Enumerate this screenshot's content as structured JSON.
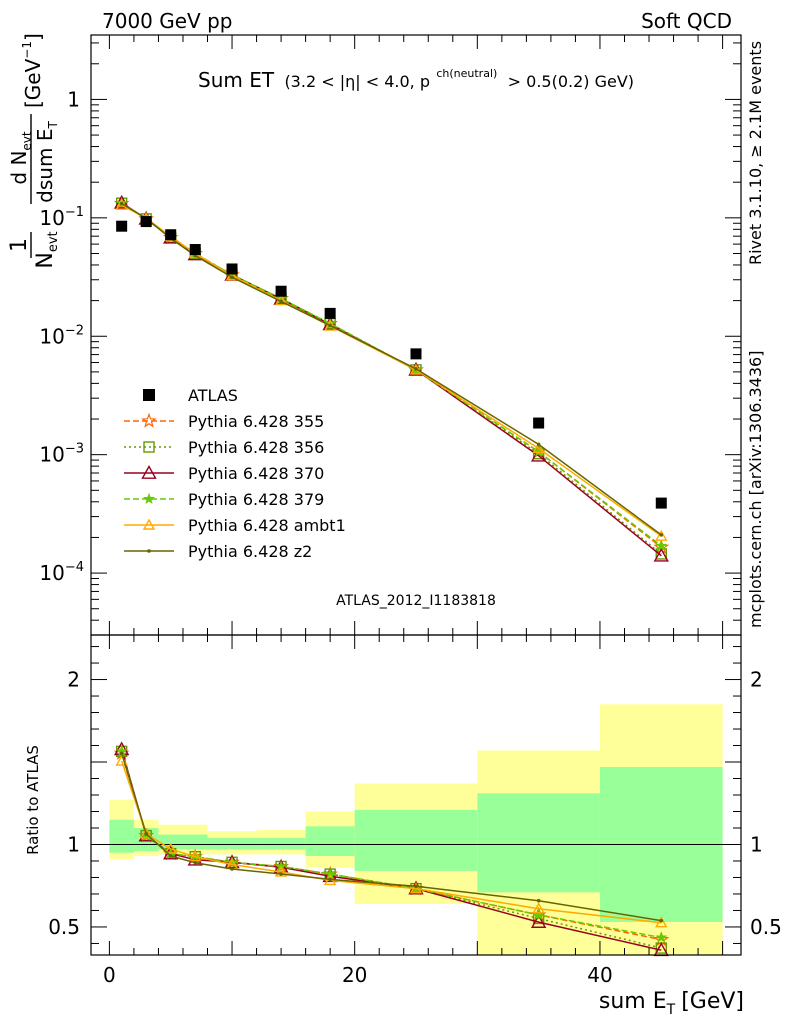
{
  "header": {
    "left": "7000 GeV pp",
    "right": "Soft QCD"
  },
  "side_labels": {
    "rivet": "Rivet 3.1.10, ≥ 2.1M events",
    "mcplots": "mcplots.cern.ch [arXiv:1306.3436]"
  },
  "watermark": "ATLAS_2012_I1183818",
  "colors": {
    "data": "#000000",
    "p355": "#ff6600",
    "p356": "#669900",
    "p370": "#990022",
    "p379": "#66cc00",
    "ambt1": "#ffaa00",
    "z2": "#666600",
    "band_inner": "#99ff99",
    "band_outer": "#ffff99",
    "watermark": "#aaaaaa",
    "side_text": "#888888"
  },
  "chart_data": {
    "type": "line",
    "title_main": "Sum ET",
    "title_sub": "(3.2 < |η| < 4.0, p",
    "title_sup": "ch(neutral)",
    "title_tail": "> 0.5(0.2) GeV)",
    "xlabel": "sum E",
    "xlabel_sub": "T",
    "xlabel_unit": "[GeV]",
    "xlim": [
      -1.5,
      51.5
    ],
    "x_ticks": [
      0,
      20,
      40
    ],
    "main": {
      "yscale": "log",
      "ylim": [
        3e-05,
        3.5
      ],
      "ytick_labels": [
        {
          "value": 1,
          "base": "1",
          "exp": ""
        },
        {
          "value": 0.1,
          "base": "10",
          "exp": "−1"
        },
        {
          "value": 0.01,
          "base": "10",
          "exp": "−2"
        },
        {
          "value": 0.001,
          "base": "10",
          "exp": "−3"
        },
        {
          "value": 0.0001,
          "base": "10",
          "exp": "−4"
        }
      ],
      "ylabel_num": "d N",
      "ylabel_num_sub": "evt",
      "ylabel_den": "dsum E",
      "ylabel_den_sub": "T",
      "ylabel_pre": "1",
      "ylabel_pre_den": "N",
      "ylabel_pre_den_sub": "evt",
      "ylabel_unit": "[GeV",
      "ylabel_unit_sup": "−1",
      "ylabel_unit_close": "]"
    },
    "ratio": {
      "ylabel": "Ratio to ATLAS",
      "ylim": [
        0.33,
        2.27
      ],
      "ytick_labels": [
        "0.5",
        "1",
        "2"
      ],
      "yticks": [
        0.5,
        1,
        2
      ],
      "bands": [
        {
          "x0": 0,
          "x1": 2,
          "inner": [
            0.95,
            1.15
          ],
          "outer": [
            0.91,
            1.27
          ]
        },
        {
          "x0": 2,
          "x1": 4,
          "inner": [
            0.96,
            1.1
          ],
          "outer": [
            0.93,
            1.15
          ]
        },
        {
          "x0": 4,
          "x1": 8,
          "inner": [
            0.97,
            1.06
          ],
          "outer": [
            0.94,
            1.12
          ]
        },
        {
          "x0": 8,
          "x1": 12,
          "inner": [
            0.97,
            1.04
          ],
          "outer": [
            0.94,
            1.08
          ]
        },
        {
          "x0": 12,
          "x1": 16,
          "inner": [
            0.97,
            1.04
          ],
          "outer": [
            0.94,
            1.09
          ]
        },
        {
          "x0": 16,
          "x1": 20,
          "inner": [
            0.93,
            1.11
          ],
          "outer": [
            0.86,
            1.2
          ]
        },
        {
          "x0": 20,
          "x1": 30,
          "inner": [
            0.84,
            1.21
          ],
          "outer": [
            0.64,
            1.37
          ]
        },
        {
          "x0": 30,
          "x1": 40,
          "inner": [
            0.71,
            1.31
          ],
          "outer": [
            0.33,
            1.57
          ]
        },
        {
          "x0": 40,
          "x1": 50,
          "inner": [
            0.53,
            1.47
          ],
          "outer": [
            0.33,
            1.85
          ]
        }
      ]
    },
    "x": [
      1,
      3,
      5,
      7,
      10,
      14,
      18,
      25,
      35,
      45
    ],
    "data": {
      "name": "ATLAS",
      "y": [
        0.085,
        0.093,
        0.072,
        0.054,
        0.037,
        0.024,
        0.0156,
        0.0071,
        0.00185,
        0.00039
      ]
    },
    "series": [
      {
        "name": "Pythia 6.428 355",
        "key": "p355",
        "marker": "star",
        "dash": "6,3",
        "y": [
          0.132,
          0.098,
          0.068,
          0.05,
          0.033,
          0.0208,
          0.0128,
          0.0052,
          0.00106,
          0.000165
        ]
      },
      {
        "name": "Pythia 6.428 356",
        "key": "p356",
        "marker": "square",
        "dash": "2,3",
        "y": [
          0.133,
          0.098,
          0.068,
          0.05,
          0.033,
          0.0208,
          0.0128,
          0.0052,
          0.00102,
          0.000145
        ]
      },
      {
        "name": "Pythia 6.428 370",
        "key": "p370",
        "marker": "triangle",
        "dash": "",
        "y": [
          0.134,
          0.098,
          0.068,
          0.049,
          0.033,
          0.0207,
          0.0126,
          0.0052,
          0.00098,
          0.00014
        ]
      },
      {
        "name": "Pythia 6.428 379",
        "key": "p379",
        "marker": "smallstar",
        "dash": "6,3",
        "y": [
          0.133,
          0.098,
          0.068,
          0.05,
          0.033,
          0.0208,
          0.0128,
          0.0052,
          0.00106,
          0.00017
        ]
      },
      {
        "name": "Pythia 6.428 ambt1",
        "key": "ambt1",
        "marker": "smalltriangle",
        "dash": "",
        "y": [
          0.128,
          0.099,
          0.07,
          0.05,
          0.0325,
          0.02,
          0.0122,
          0.0052,
          0.00113,
          0.000205
        ]
      },
      {
        "name": "Pythia 6.428 z2",
        "key": "z2",
        "marker": "dot",
        "dash": "",
        "y": [
          0.132,
          0.099,
          0.067,
          0.048,
          0.0315,
          0.0197,
          0.0123,
          0.0053,
          0.00122,
          0.00021
        ]
      }
    ]
  }
}
